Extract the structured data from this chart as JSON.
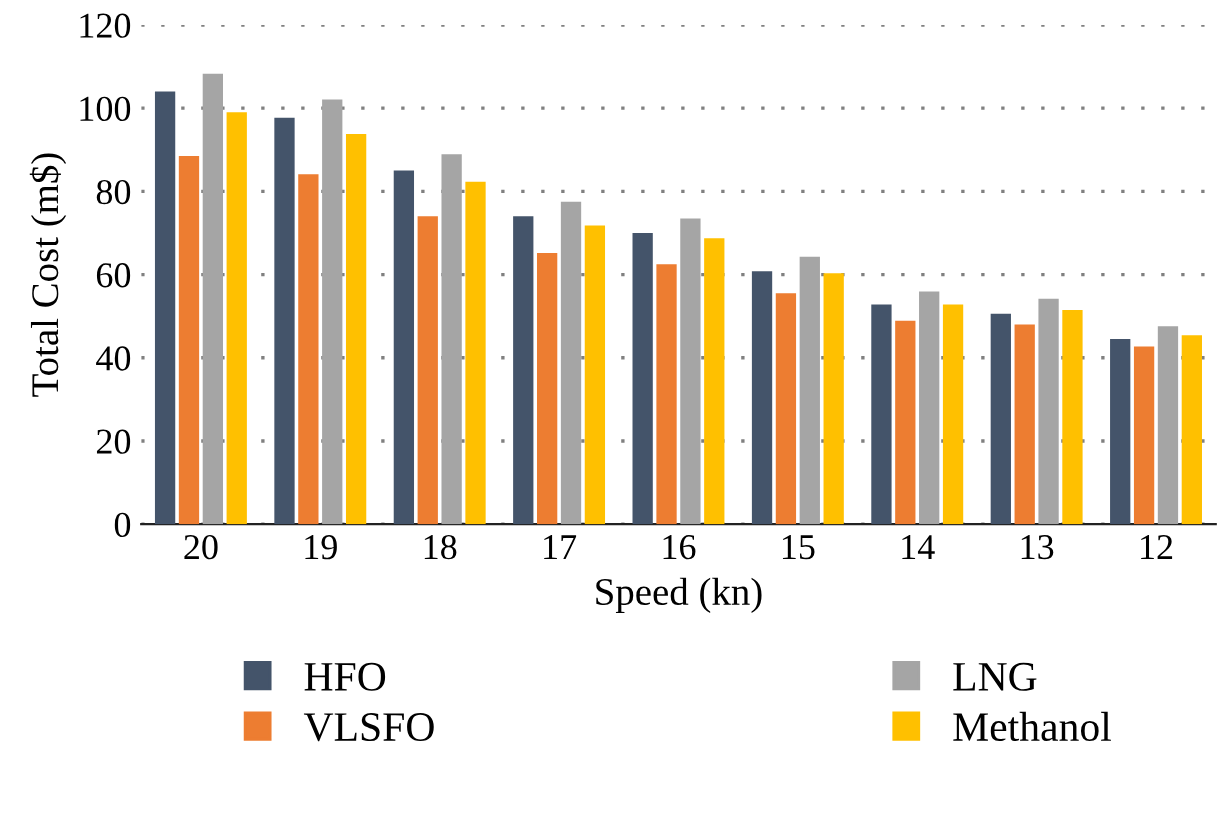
{
  "chart_data": {
    "type": "bar",
    "xlabel": "Speed (kn)",
    "ylabel": "Total Cost (m$)",
    "categories": [
      "20",
      "19",
      "18",
      "17",
      "16",
      "15",
      "14",
      "13",
      "12"
    ],
    "series": [
      {
        "name": "HFO",
        "color": "#44546a",
        "values": [
          104,
          97.7,
          85,
          74,
          70,
          60.8,
          52.8,
          50.6,
          44.5
        ]
      },
      {
        "name": "VLSFO",
        "color": "#ed7d31",
        "values": [
          88.5,
          84.1,
          74,
          65.2,
          62.5,
          55.5,
          48.9,
          48,
          42.7
        ]
      },
      {
        "name": "LNG",
        "color": "#a5a5a5",
        "values": [
          108.3,
          102.1,
          88.9,
          77.5,
          73.5,
          64.3,
          55.9,
          54.2,
          47.6
        ]
      },
      {
        "name": "Methanol",
        "color": "#ffc000",
        "values": [
          99,
          93.8,
          82.3,
          71.8,
          68.7,
          60.3,
          52.8,
          51.5,
          45.4
        ]
      }
    ],
    "ylim": [
      0,
      120
    ],
    "yticks": [
      0,
      20,
      40,
      60,
      80,
      100,
      120
    ],
    "grid": "y",
    "legend": "bottom"
  }
}
